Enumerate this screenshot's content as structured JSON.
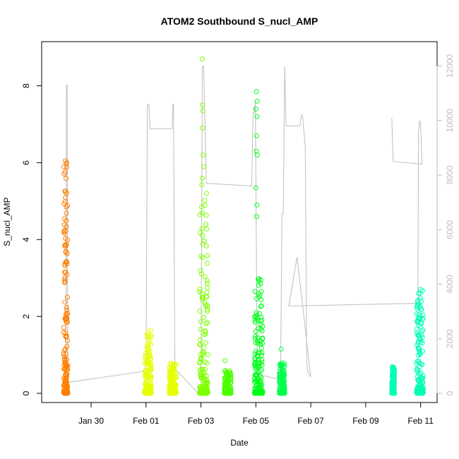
{
  "chart_data": {
    "type": "scatter",
    "title": "ATOM2 Southbound S_nucl_AMP",
    "xlabel": "Date",
    "ylabel": "S_nucl_AMP",
    "x_tick_labels": [
      "Jan 30",
      "Feb 01",
      "Feb 03",
      "Feb 05",
      "Feb 07",
      "Feb 09",
      "Feb 11"
    ],
    "x_tick_days": [
      30,
      32,
      34,
      36,
      38,
      40,
      42
    ],
    "xlim_days": [
      28.2,
      42.6
    ],
    "ylim": [
      0,
      8.8
    ],
    "y_ticks": [
      0,
      2,
      4,
      6,
      8
    ],
    "right_axis": {
      "ylim": [
        0,
        12400
      ],
      "ticks": [
        0,
        2000,
        4000,
        6000,
        8000,
        10000,
        12000
      ],
      "color": "#bebebe"
    },
    "line_series": {
      "color": "#bebebe",
      "points": [
        [
          29.05,
          300
        ],
        [
          29.08,
          400
        ],
        [
          29.1,
          11300
        ],
        [
          29.13,
          11300
        ],
        [
          29.15,
          400
        ],
        [
          31.9,
          800
        ],
        [
          32.0,
          1000
        ],
        [
          32.05,
          10600
        ],
        [
          32.1,
          10600
        ],
        [
          32.15,
          9700
        ],
        [
          32.95,
          9700
        ],
        [
          32.98,
          10600
        ],
        [
          33.0,
          10600
        ],
        [
          33.05,
          900
        ],
        [
          33.9,
          0
        ],
        [
          34.0,
          100
        ],
        [
          34.05,
          12000
        ],
        [
          34.1,
          12000
        ],
        [
          34.2,
          7700
        ],
        [
          35.85,
          7600
        ],
        [
          35.9,
          10300
        ],
        [
          35.95,
          10300
        ],
        [
          35.98,
          10700
        ],
        [
          36.05,
          700
        ],
        [
          36.9,
          500
        ],
        [
          36.95,
          6600
        ],
        [
          37.0,
          6600
        ],
        [
          37.05,
          12000
        ],
        [
          37.1,
          9800
        ],
        [
          37.6,
          9800
        ],
        [
          37.65,
          10200
        ],
        [
          37.7,
          10200
        ],
        [
          37.8,
          9000
        ],
        [
          37.85,
          1300
        ],
        [
          37.88,
          800
        ],
        [
          38.0,
          600
        ],
        [
          37.5,
          5000
        ],
        [
          37.2,
          3200
        ],
        [
          41.9,
          3300
        ],
        [
          41.92,
          9600
        ],
        [
          41.97,
          10000
        ],
        [
          42.0,
          9800
        ],
        [
          42.05,
          8400
        ],
        [
          41.0,
          8500
        ],
        [
          40.95,
          10100
        ]
      ]
    },
    "series": [
      {
        "name": "",
        "color": "#ff7f00",
        "day_start": 29.0,
        "day_end": 29.15,
        "max": 6.05,
        "extra": [
          [
            29.06,
            6.05
          ],
          [
            29.08,
            1.9
          ],
          [
            29.07,
            1.48
          ],
          [
            29.06,
            1.15
          ]
        ]
      },
      {
        "name": "",
        "color": "#e5ff00",
        "day_start": 31.95,
        "day_end": 32.2,
        "max": 1.65,
        "extra": []
      },
      {
        "name": "",
        "color": "#e5ff00",
        "day_start": 32.85,
        "day_end": 33.1,
        "max": 0.85,
        "extra": []
      },
      {
        "name": "",
        "color": "#7fff00",
        "day_start": 33.95,
        "day_end": 34.25,
        "max": 5.5,
        "extra": [
          [
            34.05,
            8.7
          ],
          [
            34.05,
            7.5
          ],
          [
            34.07,
            7.35
          ],
          [
            34.06,
            6.9
          ],
          [
            34.08,
            6.2
          ],
          [
            34.1,
            5.9
          ],
          [
            34.05,
            5.6
          ]
        ]
      },
      {
        "name": "",
        "color": "#4cff00",
        "day_start": 34.85,
        "day_end": 35.1,
        "max": 0.6,
        "extra": [
          [
            34.88,
            0.85
          ]
        ]
      },
      {
        "name": "",
        "color": "#00ff19",
        "day_start": 35.95,
        "day_end": 36.25,
        "max": 3.0,
        "extra": [
          [
            36.02,
            7.85
          ],
          [
            36.05,
            7.6
          ],
          [
            36.0,
            7.4
          ],
          [
            36.04,
            7.2
          ],
          [
            36.03,
            6.7
          ],
          [
            36.02,
            6.3
          ],
          [
            36.05,
            6.2
          ],
          [
            36.0,
            5.35
          ],
          [
            36.04,
            4.9
          ],
          [
            36.03,
            4.6
          ]
        ]
      },
      {
        "name": "",
        "color": "#00ff4c",
        "day_start": 36.85,
        "day_end": 37.05,
        "max": 0.8,
        "extra": [
          [
            36.92,
            1.15
          ]
        ]
      },
      {
        "name": "",
        "color": "#00ffb3",
        "day_start": 40.95,
        "day_end": 41.05,
        "max": 0.7,
        "extra": [
          [
            41.0,
            0.65
          ],
          [
            41.02,
            0.3
          ]
        ]
      },
      {
        "name": "",
        "color": "#00ffb3",
        "day_start": 41.85,
        "day_end": 42.1,
        "max": 2.7,
        "extra": [
          [
            42.0,
            2.7
          ],
          [
            41.98,
            2.6
          ]
        ]
      }
    ]
  }
}
